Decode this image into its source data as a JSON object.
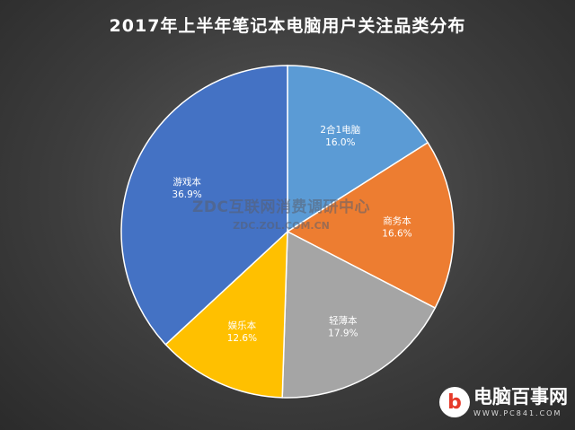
{
  "chart_data": {
    "type": "pie",
    "title": "2017年上半年笔记本电脑用户关注品类分布",
    "start_angle_deg": 0,
    "direction": "clockwise",
    "legend": "none",
    "slices": [
      {
        "label": "2合1电脑",
        "value": 16.0,
        "value_label": "16.0%",
        "color": "#5b9bd5"
      },
      {
        "label": "商务本",
        "value": 16.6,
        "value_label": "16.6%",
        "color": "#ed7d31"
      },
      {
        "label": "轻薄本",
        "value": 17.9,
        "value_label": "17.9%",
        "color": "#a5a5a5"
      },
      {
        "label": "娱乐本",
        "value": 12.6,
        "value_label": "12.6%",
        "color": "#ffc000"
      },
      {
        "label": "游戏本",
        "value": 36.9,
        "value_label": "36.9%",
        "color": "#4472c4"
      }
    ]
  },
  "watermark": {
    "main": "ZDC互联网消费调研中心",
    "sub": "ZDC.ZOL.COM.CN"
  },
  "logo": {
    "name": "电脑百事网",
    "url": "WWW.PC841.COM"
  }
}
